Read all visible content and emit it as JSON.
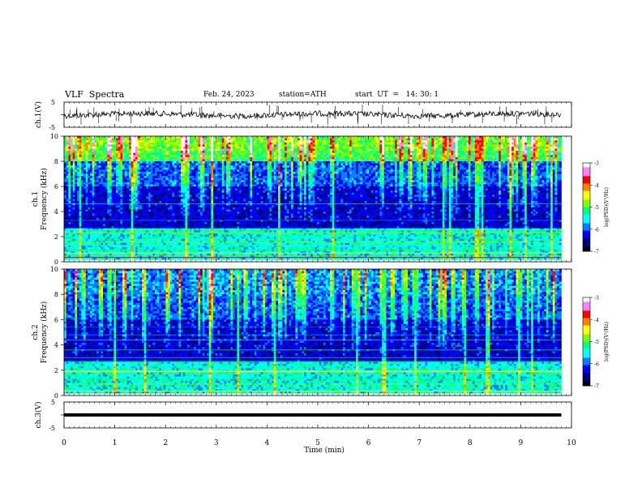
{
  "header": {
    "title": "VLF  Spectra",
    "date": "Feb. 24, 2023",
    "station": "station=ATH",
    "start_ut": "start  UT  =   14: 30: 1"
  },
  "chart_data": [
    {
      "type": "line",
      "name": "ch1-waveform",
      "ylabel": "ch.1(V)",
      "ylim": [
        -5,
        5
      ],
      "yticks": [
        "5",
        "-5"
      ],
      "x_range_min": [
        0,
        9.8
      ],
      "baseline_v": 0.0
    },
    {
      "type": "heatmap",
      "name": "ch1-spectrogram",
      "ylabel": "ch.1\nFrequency  (kHz)",
      "ylabel_line1": "ch.1",
      "ylabel_line2": "Frequency  (kHz)",
      "ylim_khz": [
        0,
        10
      ],
      "yticks": [
        "0",
        "2",
        "4",
        "6",
        "8",
        "10"
      ],
      "colorbar": {
        "label": "log(PSD)(V²/Hz)",
        "range": [
          -7,
          -3
        ],
        "ticks": [
          "-3",
          "-4",
          "-5",
          "-6",
          "-7"
        ]
      }
    },
    {
      "type": "heatmap",
      "name": "ch2-spectrogram",
      "ylabel_line1": "ch.2",
      "ylabel_line2": "Frequency  (kHz)",
      "ylim_khz": [
        0,
        10
      ],
      "yticks": [
        "0",
        "2",
        "4",
        "6",
        "8",
        "10"
      ],
      "colorbar": {
        "label": "log(PSD)(V²/Hz)",
        "range": [
          -7,
          -3
        ],
        "ticks": [
          "-3",
          "-4",
          "-5",
          "-6",
          "-7"
        ]
      }
    },
    {
      "type": "line",
      "name": "ch3-waveform",
      "ylabel": "ch.3(V)",
      "ylim": [
        -5,
        5
      ],
      "yticks": [
        "5",
        "-5"
      ],
      "x_range_min": [
        0,
        9.8
      ],
      "baseline_v": 0.0
    }
  ],
  "xaxis": {
    "label": "Time  (min)",
    "range": [
      0,
      10
    ],
    "ticks": [
      "0",
      "1",
      "2",
      "3",
      "4",
      "5",
      "6",
      "7",
      "8",
      "9",
      "10"
    ]
  },
  "colormap": [
    "#000000",
    "#000080",
    "#0000ff",
    "#0080ff",
    "#00ffff",
    "#00ff80",
    "#80ff00",
    "#ffff00",
    "#ff8000",
    "#ff0000",
    "#ff80ff",
    "#ffffff"
  ]
}
